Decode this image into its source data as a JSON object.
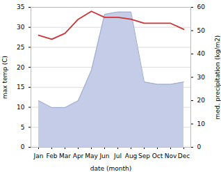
{
  "chart_data": {
    "type": "line",
    "xlabel": "date (month)",
    "ylabel": "max temp (C)",
    "y2label": "med. precipitation (kg/m2)",
    "categories": [
      "Jan",
      "Feb",
      "Mar",
      "Apr",
      "May",
      "Jun",
      "Jul",
      "Aug",
      "Sep",
      "Oct",
      "Nov",
      "Dec"
    ],
    "series": [
      {
        "type": "area",
        "axis": "y2",
        "color": "#c5cce8",
        "values": [
          20,
          17,
          17,
          20,
          33,
          57,
          58,
          58,
          28,
          27,
          27,
          28
        ]
      },
      {
        "type": "line",
        "color": "#cc3333",
        "values": [
          28,
          27,
          28.5,
          32,
          34,
          32.5,
          32.5,
          32,
          31,
          31,
          31,
          29.5
        ]
      }
    ],
    "ylim": [
      0,
      35
    ],
    "yticks": [
      0,
      5,
      10,
      15,
      20,
      25,
      30,
      35
    ],
    "y2lim": [
      0,
      60
    ],
    "y2ticks": [
      0,
      10,
      20,
      30,
      40,
      50,
      60
    ],
    "grid": true
  }
}
